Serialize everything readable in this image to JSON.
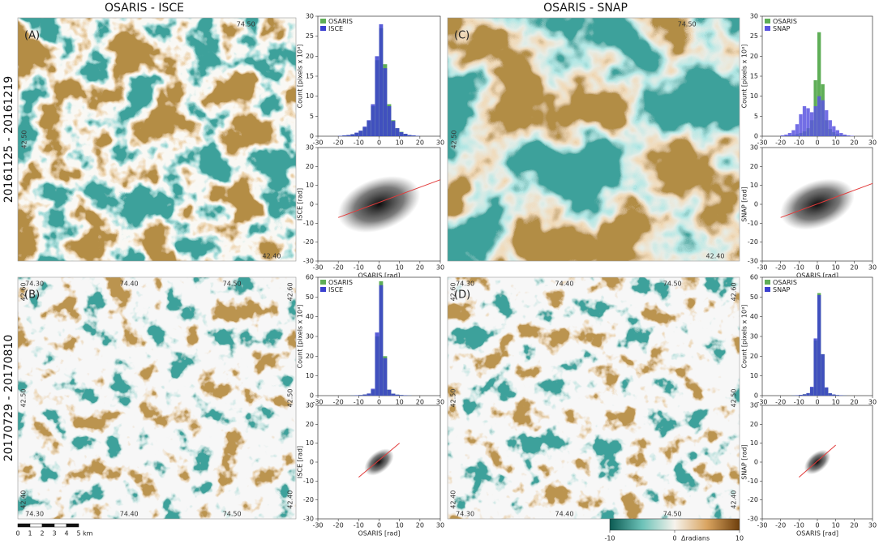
{
  "columns": [
    "OSARIS - ISCE",
    "OSARIS - SNAP"
  ],
  "rows": [
    "20161125 - 20161219",
    "20170729 - 20170810"
  ],
  "maps": [
    {
      "label": "(A)"
    },
    {
      "label": "(C)"
    },
    {
      "label": "(B)"
    },
    {
      "label": "(D)"
    }
  ],
  "map_ticks": {
    "lon": [
      "74.30",
      "74.40",
      "74.50"
    ],
    "lat": [
      "42.60",
      "42.50",
      "42.40"
    ]
  },
  "colorbar": {
    "lim": [
      -10,
      10
    ],
    "ticks": [
      -10,
      0,
      10
    ],
    "label": "Δradians"
  },
  "scalebar": {
    "ticks": [
      0,
      1,
      2,
      3,
      4,
      5
    ],
    "unit": "km"
  },
  "chart_data": [
    {
      "type": "histogram",
      "y_label": "Count [pixels x 10³]",
      "legend": "upper left",
      "bins": [
        -20,
        -18,
        -16,
        -14,
        -12,
        -10,
        -8,
        -6,
        -4,
        -2,
        0,
        2,
        4,
        6,
        8,
        10,
        12,
        14,
        16,
        18,
        20
      ],
      "series": [
        {
          "name": "OSARIS",
          "color": "#5fae57",
          "values": [
            0.1,
            0.2,
            0.3,
            0.5,
            0.8,
            1.3,
            2.2,
            3.8,
            7.5,
            19,
            27,
            18,
            8,
            4,
            2,
            1.1,
            0.6,
            0.3,
            0.2,
            0.1
          ]
        },
        {
          "name": "ISCE",
          "color": "#3b40d0",
          "values": [
            0.1,
            0.2,
            0.3,
            0.5,
            0.9,
            1.4,
            2.4,
            4,
            8,
            20,
            28,
            17,
            7.5,
            3.8,
            2,
            1,
            0.6,
            0.3,
            0.2,
            0.1
          ]
        }
      ],
      "xlim": [
        -30,
        30
      ],
      "xticks": [
        -30,
        -20,
        -10,
        0,
        10,
        20,
        30
      ],
      "ylim": [
        0,
        30
      ],
      "yticks": [
        0,
        5,
        10,
        15,
        20,
        25,
        30
      ]
    },
    {
      "type": "scatter",
      "x_label": "OSARIS [rad]",
      "y_label": "ISCE [rad]",
      "fit": {
        "color": "#e23b3b",
        "x": [
          -20,
          30
        ],
        "y": [
          -7,
          13
        ]
      },
      "xlim": [
        -30,
        30
      ],
      "xticks": [
        -30,
        -20,
        -10,
        0,
        10,
        20,
        30
      ],
      "ylim": [
        -30,
        30
      ],
      "yticks": [
        -30,
        -20,
        -10,
        0,
        10,
        20,
        30
      ]
    },
    {
      "type": "histogram",
      "y_label": "Count [pixels x 10³]",
      "legend": "upper left",
      "bins": [
        -20,
        -18,
        -16,
        -14,
        -12,
        -10,
        -8,
        -6,
        -4,
        -2,
        0,
        2,
        4,
        6,
        8,
        10,
        12,
        14,
        16,
        18,
        20
      ],
      "series": [
        {
          "name": "OSARIS",
          "color": "#5fae57",
          "values": [
            0,
            0.1,
            0.2,
            0.3,
            0.5,
            0.8,
            1.2,
            2,
            4,
            14,
            26,
            13,
            4,
            1.8,
            1,
            0.5,
            0.3,
            0.2,
            0.1,
            0
          ]
        },
        {
          "name": "SNAP",
          "color": "#5b55e0",
          "values": [
            0.2,
            0.4,
            0.8,
            1.5,
            3,
            5.5,
            7.5,
            7,
            6,
            7.5,
            10,
            9,
            6.5,
            4,
            2.5,
            1.5,
            0.8,
            0.4,
            0.2,
            0.1
          ]
        }
      ],
      "xlim": [
        -30,
        30
      ],
      "xticks": [
        -30,
        -20,
        -10,
        0,
        10,
        20,
        30
      ],
      "ylim": [
        0,
        30
      ],
      "yticks": [
        0,
        5,
        10,
        15,
        20,
        25,
        30
      ]
    },
    {
      "type": "scatter",
      "x_label": "OSARIS [rad]",
      "y_label": "SNAP [rad]",
      "fit": {
        "color": "#e23b3b",
        "x": [
          -20,
          30
        ],
        "y": [
          -7,
          11
        ]
      },
      "xlim": [
        -30,
        30
      ],
      "xticks": [
        -30,
        -20,
        -10,
        0,
        10,
        20,
        30
      ],
      "ylim": [
        -30,
        30
      ],
      "yticks": [
        -30,
        -20,
        -10,
        0,
        10,
        20,
        30
      ]
    },
    {
      "type": "histogram",
      "y_label": "Count [pixels x 10³]",
      "legend": "upper left",
      "bins": [
        -20,
        -18,
        -16,
        -14,
        -12,
        -10,
        -8,
        -6,
        -4,
        -2,
        0,
        2,
        4,
        6,
        8,
        10,
        12,
        14,
        16,
        18,
        20
      ],
      "series": [
        {
          "name": "OSARIS",
          "color": "#5fae57",
          "values": [
            0,
            0,
            0,
            0.1,
            0.2,
            0.3,
            0.6,
            1,
            3,
            30,
            58,
            20,
            3,
            1,
            0.5,
            0.3,
            0.2,
            0.1,
            0,
            0
          ]
        },
        {
          "name": "ISCE",
          "color": "#3b40d0",
          "values": [
            0,
            0,
            0,
            0.1,
            0.2,
            0.3,
            0.6,
            1.1,
            3.5,
            32,
            56,
            19,
            3,
            1,
            0.5,
            0.3,
            0.2,
            0.1,
            0,
            0
          ]
        }
      ],
      "xlim": [
        -30,
        30
      ],
      "xticks": [
        -30,
        -20,
        -10,
        0,
        10,
        20,
        30
      ],
      "ylim": [
        0,
        60
      ],
      "yticks": [
        0,
        10,
        20,
        30,
        40,
        50,
        60
      ]
    },
    {
      "type": "scatter",
      "x_label": "OSARIS [rad]",
      "y_label": "ISCE [rad]",
      "fit": {
        "color": "#e23b3b",
        "x": [
          -10,
          10
        ],
        "y": [
          -8,
          10
        ]
      },
      "xlim": [
        -30,
        30
      ],
      "xticks": [
        -30,
        -20,
        -10,
        0,
        10,
        20,
        30
      ],
      "ylim": [
        -30,
        30
      ],
      "yticks": [
        -30,
        -20,
        -10,
        0,
        10,
        20,
        30
      ]
    },
    {
      "type": "histogram",
      "y_label": "Count [pixels x 10³]",
      "legend": "upper left",
      "bins": [
        -20,
        -18,
        -16,
        -14,
        -12,
        -10,
        -8,
        -6,
        -4,
        -2,
        0,
        2,
        4,
        6,
        8,
        10,
        12,
        14,
        16,
        18,
        20
      ],
      "series": [
        {
          "name": "OSARIS",
          "color": "#5fae57",
          "values": [
            0,
            0,
            0,
            0.1,
            0.2,
            0.4,
            0.7,
            1.2,
            4,
            28,
            52,
            21,
            4,
            1.2,
            0.6,
            0.3,
            0.2,
            0.1,
            0,
            0
          ]
        },
        {
          "name": "SNAP",
          "color": "#3b40d0",
          "values": [
            0,
            0,
            0,
            0.1,
            0.2,
            0.4,
            0.7,
            1.3,
            4.5,
            29,
            51,
            21,
            4.2,
            1.2,
            0.6,
            0.3,
            0.2,
            0.1,
            0,
            0
          ]
        }
      ],
      "xlim": [
        -30,
        30
      ],
      "xticks": [
        -30,
        -20,
        -10,
        0,
        10,
        20,
        30
      ],
      "ylim": [
        0,
        60
      ],
      "yticks": [
        0,
        10,
        20,
        30,
        40,
        50,
        60
      ]
    },
    {
      "type": "scatter",
      "x_label": "OSARIS [rad]",
      "y_label": "SNAP [rad]",
      "fit": {
        "color": "#e23b3b",
        "x": [
          -10,
          10
        ],
        "y": [
          -8,
          9
        ]
      },
      "xlim": [
        -30,
        30
      ],
      "xticks": [
        -30,
        -20,
        -10,
        0,
        10,
        20,
        30
      ],
      "ylim": [
        -30,
        30
      ],
      "yticks": [
        -30,
        -20,
        -10,
        0,
        10,
        20,
        30
      ]
    }
  ]
}
